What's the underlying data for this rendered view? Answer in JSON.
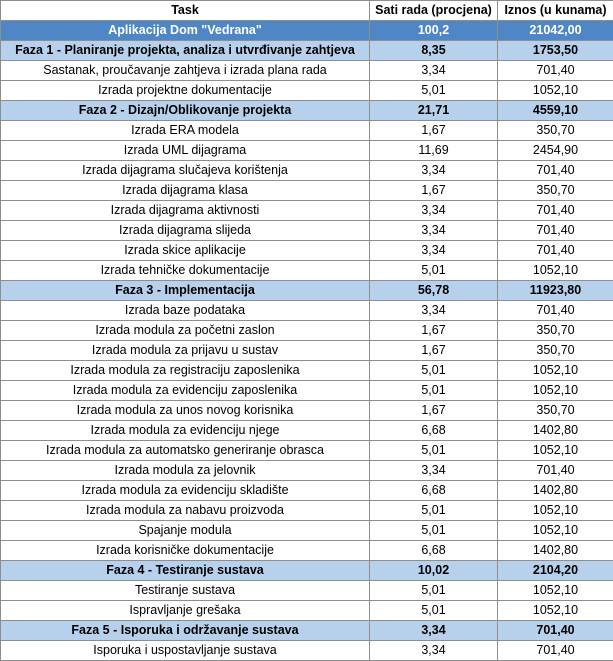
{
  "headers": {
    "task": "Task",
    "hours": "Sati rada (procjena)",
    "amount": "Iznos (u kunama)"
  },
  "rows": [
    {
      "type": "project",
      "task": "Aplikacija Dom \"Vedrana\"",
      "hours": "100,2",
      "amount": "21042,00"
    },
    {
      "type": "phase",
      "task": "Faza 1 - Planiranje projekta, analiza i utvrđivanje zahtjeva",
      "hours": "8,35",
      "amount": "1753,50"
    },
    {
      "type": "task",
      "task": "Sastanak, proučavanje zahtjeva i izrada plana rada",
      "hours": "3,34",
      "amount": "701,40"
    },
    {
      "type": "task",
      "task": "Izrada projektne dokumentacije",
      "hours": "5,01",
      "amount": "1052,10"
    },
    {
      "type": "phase",
      "task": "Faza 2 - Dizajn/Oblikovanje projekta",
      "hours": "21,71",
      "amount": "4559,10"
    },
    {
      "type": "task",
      "task": "Izrada ERA modela",
      "hours": "1,67",
      "amount": "350,70"
    },
    {
      "type": "task",
      "task": "Izrada UML dijagrama",
      "hours": "11,69",
      "amount": "2454,90"
    },
    {
      "type": "task",
      "task": "Izrada dijagrama slučajeva korištenja",
      "hours": "3,34",
      "amount": "701,40"
    },
    {
      "type": "task",
      "task": "Izrada dijagrama klasa",
      "hours": "1,67",
      "amount": "350,70"
    },
    {
      "type": "task",
      "task": "Izrada dijagrama aktivnosti",
      "hours": "3,34",
      "amount": "701,40"
    },
    {
      "type": "task",
      "task": "Izrada dijagrama slijeda",
      "hours": "3,34",
      "amount": "701,40"
    },
    {
      "type": "task",
      "task": "Izrada skice aplikacije",
      "hours": "3,34",
      "amount": "701,40"
    },
    {
      "type": "task",
      "task": "Izrada tehničke dokumentacije",
      "hours": "5,01",
      "amount": "1052,10"
    },
    {
      "type": "phase",
      "task": "Faza 3 - Implementacija",
      "hours": "56,78",
      "amount": "11923,80"
    },
    {
      "type": "task",
      "task": "Izrada baze podataka",
      "hours": "3,34",
      "amount": "701,40"
    },
    {
      "type": "task",
      "task": "Izrada modula za početni zaslon",
      "hours": "1,67",
      "amount": "350,70"
    },
    {
      "type": "task",
      "task": "Izrada modula za prijavu u sustav",
      "hours": "1,67",
      "amount": "350,70"
    },
    {
      "type": "task",
      "task": "Izrada modula za registraciju zaposlenika",
      "hours": "5,01",
      "amount": "1052,10"
    },
    {
      "type": "task",
      "task": "Izrada modula za evidenciju zaposlenika",
      "hours": "5,01",
      "amount": "1052,10"
    },
    {
      "type": "task",
      "task": "Izrada modula za unos novog korisnika",
      "hours": "1,67",
      "amount": "350,70"
    },
    {
      "type": "task",
      "task": "Izrada modula za evidenciju njege",
      "hours": "6,68",
      "amount": "1402,80"
    },
    {
      "type": "task",
      "task": "Izrada modula za automatsko generiranje obrasca",
      "hours": "5,01",
      "amount": "1052,10"
    },
    {
      "type": "task",
      "task": "Izrada modula za jelovnik",
      "hours": "3,34",
      "amount": "701,40"
    },
    {
      "type": "task",
      "task": "Izrada modula za evidenciju skladište",
      "hours": "6,68",
      "amount": "1402,80"
    },
    {
      "type": "task",
      "task": "Izrada modula za nabavu proizvoda",
      "hours": "5,01",
      "amount": "1052,10"
    },
    {
      "type": "task",
      "task": "Spajanje modula",
      "hours": "5,01",
      "amount": "1052,10"
    },
    {
      "type": "task",
      "task": "Izrada korisničke dokumentacije",
      "hours": "6,68",
      "amount": "1402,80"
    },
    {
      "type": "phase",
      "task": "Faza 4 - Testiranje sustava",
      "hours": "10,02",
      "amount": "2104,20"
    },
    {
      "type": "task",
      "task": "Testiranje sustava",
      "hours": "5,01",
      "amount": "1052,10"
    },
    {
      "type": "task",
      "task": "Ispravljanje grešaka",
      "hours": "5,01",
      "amount": "1052,10"
    },
    {
      "type": "phase",
      "task": "Faza 5 - Isporuka i održavanje sustava",
      "hours": "3,34",
      "amount": "701,40"
    },
    {
      "type": "task",
      "task": "Isporuka i uspostavljanje sustava",
      "hours": "3,34",
      "amount": "701,40"
    }
  ],
  "colors": {
    "project_row_bg": "#4f86c6",
    "phase_row_bg": "#b7d1ed",
    "grid": "#8e8e8e"
  }
}
